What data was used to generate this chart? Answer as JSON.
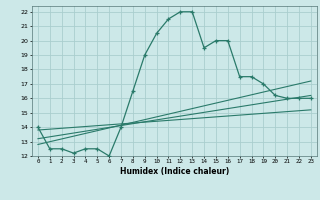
{
  "xlabel": "Humidex (Indice chaleur)",
  "ylabel": "",
  "bg_color": "#cce8e8",
  "grid_color": "#aacece",
  "line_color": "#2a7a6a",
  "xlim": [
    -0.5,
    23.5
  ],
  "ylim": [
    12,
    22.4
  ],
  "yticks": [
    12,
    13,
    14,
    15,
    16,
    17,
    18,
    19,
    20,
    21,
    22
  ],
  "xticks": [
    0,
    1,
    2,
    3,
    4,
    5,
    6,
    7,
    8,
    9,
    10,
    11,
    12,
    13,
    14,
    15,
    16,
    17,
    18,
    19,
    20,
    21,
    22,
    23
  ],
  "main_x": [
    0,
    1,
    2,
    3,
    4,
    5,
    6,
    7,
    8,
    9,
    10,
    11,
    12,
    13,
    14,
    15,
    16,
    17,
    18,
    19,
    20,
    21,
    22,
    23
  ],
  "main_y": [
    14,
    12.5,
    12.5,
    12.2,
    12.5,
    12.5,
    12.0,
    14.0,
    16.5,
    19.0,
    20.5,
    21.5,
    22.0,
    22.0,
    19.5,
    20.0,
    20.0,
    17.5,
    17.5,
    17.0,
    16.2,
    16.0,
    16.0,
    16.0
  ],
  "line2_x": [
    0,
    23
  ],
  "line2_y": [
    12.8,
    17.2
  ],
  "line3_x": [
    0,
    23
  ],
  "line3_y": [
    13.2,
    16.2
  ],
  "line4_x": [
    0,
    23
  ],
  "line4_y": [
    13.8,
    15.2
  ]
}
